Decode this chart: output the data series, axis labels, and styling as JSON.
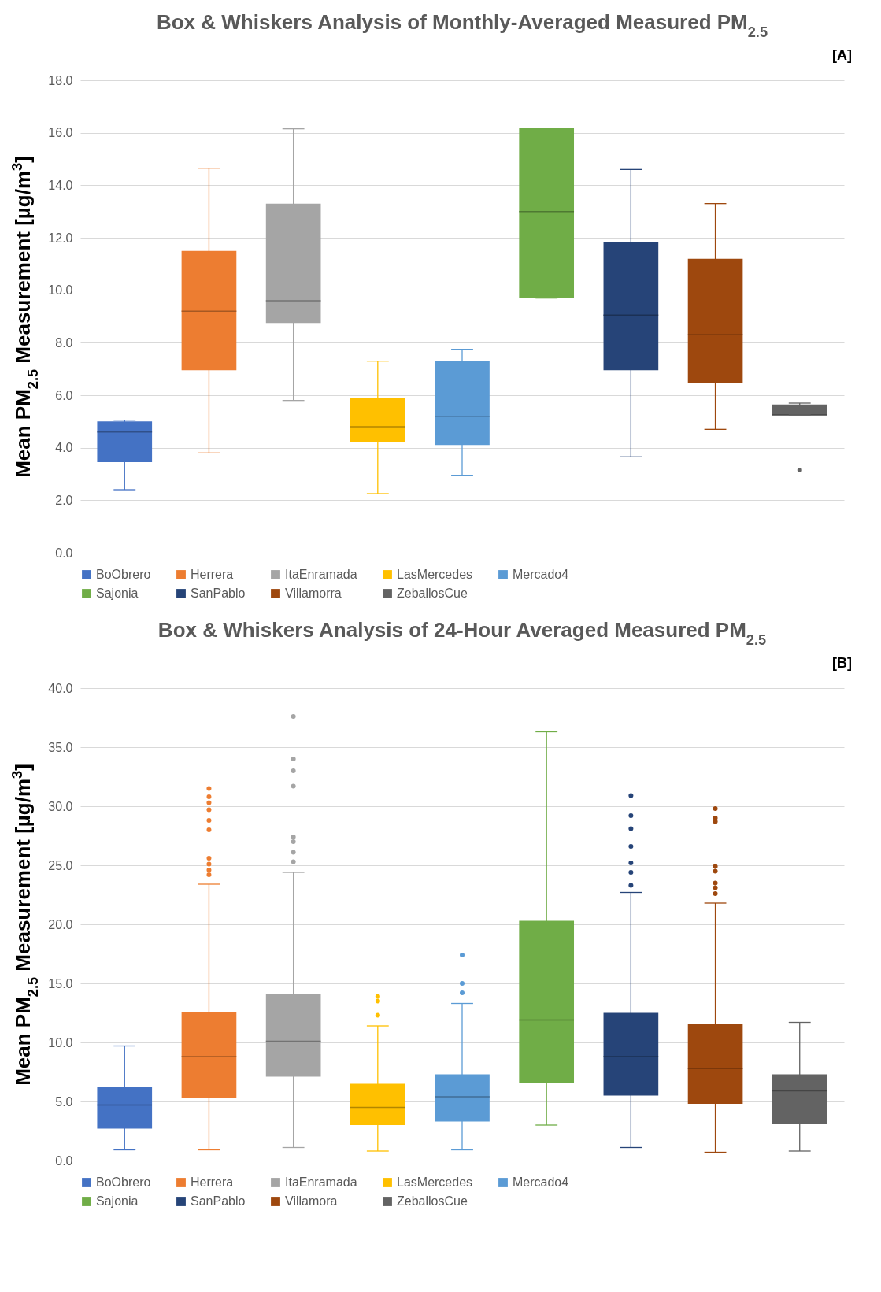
{
  "chart_data": [
    {
      "type": "box",
      "title": "Box & Whiskers Analysis of Monthly-Averaged Measured PM$_{2.5}$",
      "ylabel": "Mean PM$_{2.5}$ Measurement [µg/m$^{3}$]",
      "annotations": [
        "[A]"
      ],
      "categories": [
        null,
        null,
        null,
        null,
        null,
        null,
        null,
        null,
        null
      ],
      "tick_labels": "y",
      "ylim": [
        0,
        18
      ],
      "yticks": [
        {
          "value": 0,
          "label": "0.0"
        },
        {
          "value": 2,
          "label": "2.0"
        },
        {
          "value": 4,
          "label": "4.0"
        },
        {
          "value": 6,
          "label": "6.0"
        },
        {
          "value": 8,
          "label": "8.0"
        },
        {
          "value": 10,
          "label": "10.0"
        },
        {
          "value": 12,
          "label": "12.0"
        },
        {
          "value": 14,
          "label": "14.0"
        },
        {
          "value": 16,
          "label": "16.0"
        },
        {
          "value": 18,
          "label": "18.0"
        }
      ],
      "grid": "y",
      "legend": "bottom",
      "series": [
        {
          "name": "BoObrero",
          "color": "#4472c4",
          "boxes": [
            {
              "low": 2.4,
              "q1": 3.45,
              "median": 4.6,
              "q3": 5.0,
              "high": 5.05
            },
            null,
            null,
            null,
            null,
            null,
            null,
            null,
            null
          ]
        },
        {
          "name": "Herrera",
          "color": "#ed7d31",
          "boxes": [
            null,
            {
              "low": 3.8,
              "q1": 6.95,
              "median": 9.2,
              "q3": 11.5,
              "high": 14.65
            },
            null,
            null,
            null,
            null,
            null,
            null,
            null
          ]
        },
        {
          "name": "ItaEnramada",
          "color": "#a5a5a5",
          "boxes": [
            null,
            null,
            {
              "low": 5.8,
              "q1": 8.75,
              "median": 9.6,
              "q3": 13.3,
              "high": 16.15
            },
            null,
            null,
            null,
            null,
            null,
            null
          ]
        },
        {
          "name": "LasMercedes",
          "color": "#ffc000",
          "boxes": [
            null,
            null,
            null,
            {
              "low": 2.25,
              "q1": 4.2,
              "median": 4.8,
              "q3": 5.9,
              "high": 7.3
            },
            null,
            null,
            null,
            null,
            null
          ]
        },
        {
          "name": "Mercado4",
          "color": "#5b9bd5",
          "boxes": [
            null,
            null,
            null,
            null,
            {
              "low": 2.95,
              "q1": 4.1,
              "median": 5.2,
              "q3": 7.3,
              "high": 7.75
            },
            null,
            null,
            null,
            null
          ]
        },
        {
          "name": "Sajonia",
          "color": "#70ad47",
          "boxes": [
            null,
            null,
            null,
            null,
            null,
            {
              "low": 9.7,
              "q1": 9.7,
              "median": 13.0,
              "q3": 16.2,
              "high": 16.2
            },
            null,
            null,
            null
          ]
        },
        {
          "name": "SanPablo",
          "color": "#264478",
          "boxes": [
            null,
            null,
            null,
            null,
            null,
            null,
            {
              "low": 3.65,
              "q1": 6.95,
              "median": 9.05,
              "q3": 11.85,
              "high": 14.6
            },
            null,
            null
          ]
        },
        {
          "name": "Villamorra",
          "color": "#9e480e",
          "boxes": [
            null,
            null,
            null,
            null,
            null,
            null,
            null,
            {
              "low": 4.7,
              "q1": 6.45,
              "median": 8.3,
              "q3": 11.2,
              "high": 13.3
            },
            null
          ]
        },
        {
          "name": "ZeballosCue",
          "color": "#636363",
          "boxes": [
            null,
            null,
            null,
            null,
            null,
            null,
            null,
            null,
            {
              "low": 5.25,
              "q1": 5.25,
              "median": 5.25,
              "q3": 5.65,
              "high": 5.7,
              "outliers": [
                3.15
              ]
            }
          ]
        }
      ]
    },
    {
      "type": "box",
      "title": "Box & Whiskers Analysis of 24-Hour Averaged Measured PM$_{2.5}$",
      "ylabel": "Mean PM$_{2.5}$ Measurement [µg/m$^{3}$]",
      "annotations": [
        "[B]"
      ],
      "categories": [
        null,
        null,
        null,
        null,
        null,
        null,
        null,
        null,
        null
      ],
      "tick_labels": "y",
      "ylim": [
        0,
        40
      ],
      "yticks": [
        {
          "value": 0,
          "label": "0.0"
        },
        {
          "value": 5,
          "label": "5.0"
        },
        {
          "value": 10,
          "label": "10.0"
        },
        {
          "value": 15,
          "label": "15.0"
        },
        {
          "value": 20,
          "label": "20.0"
        },
        {
          "value": 25,
          "label": "25.0"
        },
        {
          "value": 30,
          "label": "30.0"
        },
        {
          "value": 35,
          "label": "35.0"
        },
        {
          "value": 40,
          "label": "40.0"
        }
      ],
      "grid": "y",
      "legend": "bottom",
      "series": [
        {
          "name": "BoObrero",
          "color": "#4472c4",
          "boxes": [
            {
              "low": 0.9,
              "q1": 2.7,
              "median": 4.7,
              "q3": 6.2,
              "high": 9.7
            },
            null,
            null,
            null,
            null,
            null,
            null,
            null,
            null
          ]
        },
        {
          "name": "Herrera",
          "color": "#ed7d31",
          "boxes": [
            null,
            {
              "low": 0.9,
              "q1": 5.3,
              "median": 8.8,
              "q3": 12.6,
              "high": 23.4,
              "outliers": [
                31.5,
                30.8,
                30.3,
                29.7,
                28.8,
                28.0,
                25.6,
                25.1,
                24.6,
                24.2
              ]
            },
            null,
            null,
            null,
            null,
            null,
            null,
            null
          ]
        },
        {
          "name": "ItaEnramada",
          "color": "#a5a5a5",
          "boxes": [
            null,
            null,
            {
              "low": 1.1,
              "q1": 7.1,
              "median": 10.1,
              "q3": 14.1,
              "high": 24.4,
              "outliers": [
                37.6,
                34.0,
                33.0,
                31.7,
                27.4,
                27.0,
                26.1,
                25.3
              ]
            },
            null,
            null,
            null,
            null,
            null,
            null
          ]
        },
        {
          "name": "LasMercedes",
          "color": "#ffc000",
          "boxes": [
            null,
            null,
            null,
            {
              "low": 0.8,
              "q1": 3.0,
              "median": 4.5,
              "q3": 6.5,
              "high": 11.4,
              "outliers": [
                13.9,
                13.5,
                12.3
              ]
            },
            null,
            null,
            null,
            null,
            null
          ]
        },
        {
          "name": "Mercado4",
          "color": "#5b9bd5",
          "boxes": [
            null,
            null,
            null,
            null,
            {
              "low": 0.9,
              "q1": 3.3,
              "median": 5.4,
              "q3": 7.3,
              "high": 13.3,
              "outliers": [
                17.4,
                15.0,
                14.2
              ]
            },
            null,
            null,
            null,
            null
          ]
        },
        {
          "name": "Sajonia",
          "color": "#70ad47",
          "boxes": [
            null,
            null,
            null,
            null,
            null,
            {
              "low": 3.0,
              "q1": 6.6,
              "median": 11.9,
              "q3": 20.3,
              "high": 36.3
            },
            null,
            null,
            null
          ]
        },
        {
          "name": "SanPablo",
          "color": "#264478",
          "boxes": [
            null,
            null,
            null,
            null,
            null,
            null,
            {
              "low": 1.1,
              "q1": 5.5,
              "median": 8.8,
              "q3": 12.5,
              "high": 22.7,
              "outliers": [
                30.9,
                29.2,
                28.1,
                26.6,
                25.2,
                24.4,
                23.3
              ]
            },
            null,
            null
          ]
        },
        {
          "name": "Villamora",
          "color": "#9e480e",
          "boxes": [
            null,
            null,
            null,
            null,
            null,
            null,
            null,
            {
              "low": 0.7,
              "q1": 4.8,
              "median": 7.8,
              "q3": 11.6,
              "high": 21.8,
              "outliers": [
                29.8,
                29.0,
                28.7,
                24.9,
                24.5,
                23.5,
                23.1,
                22.6
              ]
            },
            null
          ]
        },
        {
          "name": "ZeballosCue",
          "color": "#636363",
          "boxes": [
            null,
            null,
            null,
            null,
            null,
            null,
            null,
            null,
            {
              "low": 0.8,
              "q1": 3.1,
              "median": 5.9,
              "q3": 7.3,
              "high": 11.7
            }
          ]
        }
      ]
    }
  ]
}
